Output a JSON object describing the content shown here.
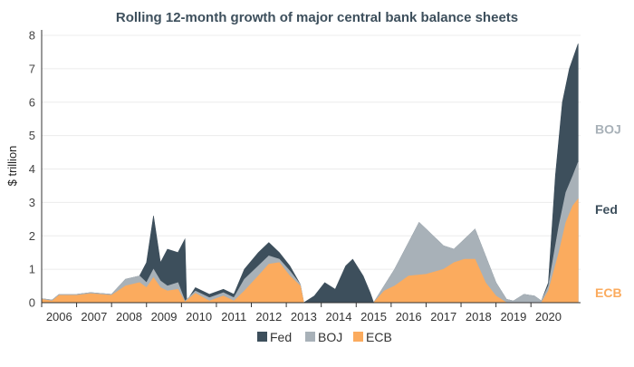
{
  "chart_data": {
    "type": "area",
    "stacked": true,
    "title": "Rolling 12-month growth of major central bank balance sheets",
    "ylabel": "$ trillion",
    "xlabel": "",
    "ylim": [
      0,
      8
    ],
    "yticks": [
      0,
      1,
      2,
      3,
      4,
      5,
      6,
      7,
      8
    ],
    "xlim": [
      2005.5,
      2020.92
    ],
    "x_tick_labels": [
      "2006",
      "2007",
      "2008",
      "2009",
      "2010",
      "2011",
      "2012",
      "2013",
      "2014",
      "2015",
      "2016",
      "2017",
      "2018",
      "2019",
      "2020"
    ],
    "grid": "horizontal",
    "legend": "bottom-center",
    "end_labels": [
      "BOJ",
      "Fed",
      "ECB"
    ],
    "colors": {
      "Fed": "#3d4f5c",
      "BOJ": "#a8b1b8",
      "ECB": "#fbab5e"
    },
    "series": [
      {
        "name": "ECB",
        "points": [
          [
            2005.5,
            0.1
          ],
          [
            2005.8,
            0.05
          ],
          [
            2006.0,
            0.22
          ],
          [
            2006.5,
            0.22
          ],
          [
            2006.9,
            0.27
          ],
          [
            2007.5,
            0.22
          ],
          [
            2007.9,
            0.5
          ],
          [
            2008.3,
            0.6
          ],
          [
            2008.5,
            0.45
          ],
          [
            2008.7,
            0.75
          ],
          [
            2008.9,
            0.45
          ],
          [
            2009.1,
            0.35
          ],
          [
            2009.4,
            0.4
          ],
          [
            2009.6,
            0.02
          ],
          [
            2009.9,
            0.28
          ],
          [
            2010.3,
            0.05
          ],
          [
            2010.7,
            0.2
          ],
          [
            2011.0,
            0.05
          ],
          [
            2011.3,
            0.35
          ],
          [
            2011.7,
            0.8
          ],
          [
            2012.0,
            1.15
          ],
          [
            2012.3,
            1.2
          ],
          [
            2012.6,
            0.8
          ],
          [
            2012.9,
            0.5
          ],
          [
            2013.0,
            0.0
          ],
          [
            2015.0,
            0.0
          ],
          [
            2015.3,
            0.35
          ],
          [
            2015.6,
            0.5
          ],
          [
            2016.0,
            0.8
          ],
          [
            2016.5,
            0.85
          ],
          [
            2017.0,
            1.0
          ],
          [
            2017.3,
            1.2
          ],
          [
            2017.6,
            1.3
          ],
          [
            2017.9,
            1.3
          ],
          [
            2018.2,
            0.6
          ],
          [
            2018.5,
            0.2
          ],
          [
            2018.8,
            0.0
          ],
          [
            2019.8,
            0.0
          ],
          [
            2020.0,
            0.35
          ],
          [
            2020.3,
            1.5
          ],
          [
            2020.5,
            2.4
          ],
          [
            2020.7,
            2.9
          ],
          [
            2020.85,
            3.1
          ]
        ]
      },
      {
        "name": "BOJ",
        "points": [
          [
            2005.5,
            0.12
          ],
          [
            2005.8,
            0.08
          ],
          [
            2006.0,
            0.25
          ],
          [
            2006.5,
            0.25
          ],
          [
            2006.9,
            0.3
          ],
          [
            2007.5,
            0.25
          ],
          [
            2007.9,
            0.7
          ],
          [
            2008.3,
            0.8
          ],
          [
            2008.5,
            0.6
          ],
          [
            2008.7,
            1.0
          ],
          [
            2008.9,
            0.65
          ],
          [
            2009.1,
            0.5
          ],
          [
            2009.4,
            0.6
          ],
          [
            2009.6,
            0.05
          ],
          [
            2009.9,
            0.35
          ],
          [
            2010.3,
            0.15
          ],
          [
            2010.7,
            0.3
          ],
          [
            2011.0,
            0.15
          ],
          [
            2011.3,
            0.7
          ],
          [
            2011.7,
            1.1
          ],
          [
            2012.0,
            1.4
          ],
          [
            2012.3,
            1.3
          ],
          [
            2012.6,
            0.95
          ],
          [
            2012.9,
            0.55
          ],
          [
            2013.0,
            0.0
          ],
          [
            2015.0,
            0.0
          ],
          [
            2015.3,
            0.5
          ],
          [
            2015.6,
            1.0
          ],
          [
            2016.0,
            1.8
          ],
          [
            2016.3,
            2.4
          ],
          [
            2016.6,
            2.1
          ],
          [
            2017.0,
            1.7
          ],
          [
            2017.3,
            1.6
          ],
          [
            2017.6,
            1.9
          ],
          [
            2017.9,
            2.2
          ],
          [
            2018.2,
            1.4
          ],
          [
            2018.5,
            0.6
          ],
          [
            2018.8,
            0.1
          ],
          [
            2019.0,
            0.05
          ],
          [
            2019.3,
            0.25
          ],
          [
            2019.6,
            0.2
          ],
          [
            2019.8,
            0.05
          ],
          [
            2020.0,
            0.5
          ],
          [
            2020.3,
            2.3
          ],
          [
            2020.5,
            3.3
          ],
          [
            2020.7,
            3.8
          ],
          [
            2020.85,
            4.2
          ]
        ]
      },
      {
        "name": "Fed",
        "points": [
          [
            2005.5,
            0.12
          ],
          [
            2005.8,
            0.08
          ],
          [
            2006.0,
            0.25
          ],
          [
            2006.5,
            0.25
          ],
          [
            2006.9,
            0.3
          ],
          [
            2007.5,
            0.25
          ],
          [
            2007.9,
            0.7
          ],
          [
            2008.3,
            0.8
          ],
          [
            2008.5,
            1.2
          ],
          [
            2008.7,
            2.6
          ],
          [
            2008.9,
            1.2
          ],
          [
            2009.1,
            1.6
          ],
          [
            2009.4,
            1.5
          ],
          [
            2009.6,
            1.9
          ],
          [
            2009.65,
            0.05
          ],
          [
            2009.9,
            0.45
          ],
          [
            2010.3,
            0.25
          ],
          [
            2010.7,
            0.4
          ],
          [
            2011.0,
            0.25
          ],
          [
            2011.3,
            1.0
          ],
          [
            2011.7,
            1.5
          ],
          [
            2012.0,
            1.8
          ],
          [
            2012.3,
            1.5
          ],
          [
            2012.6,
            1.1
          ],
          [
            2012.9,
            0.55
          ],
          [
            2013.0,
            0.0
          ],
          [
            2013.3,
            0.2
          ],
          [
            2013.6,
            0.6
          ],
          [
            2013.9,
            0.4
          ],
          [
            2014.2,
            1.1
          ],
          [
            2014.4,
            1.3
          ],
          [
            2014.7,
            0.8
          ],
          [
            2014.9,
            0.3
          ],
          [
            2015.0,
            0.0
          ],
          [
            2015.3,
            0.5
          ],
          [
            2015.6,
            1.0
          ],
          [
            2016.0,
            1.8
          ],
          [
            2016.3,
            2.4
          ],
          [
            2016.6,
            2.1
          ],
          [
            2017.0,
            1.7
          ],
          [
            2017.3,
            1.6
          ],
          [
            2017.6,
            1.9
          ],
          [
            2017.9,
            2.2
          ],
          [
            2018.2,
            1.4
          ],
          [
            2018.5,
            0.6
          ],
          [
            2018.8,
            0.1
          ],
          [
            2019.0,
            0.05
          ],
          [
            2019.3,
            0.25
          ],
          [
            2019.6,
            0.2
          ],
          [
            2019.8,
            0.05
          ],
          [
            2020.0,
            0.6
          ],
          [
            2020.2,
            3.8
          ],
          [
            2020.4,
            6.0
          ],
          [
            2020.6,
            7.0
          ],
          [
            2020.85,
            7.75
          ]
        ]
      }
    ]
  }
}
